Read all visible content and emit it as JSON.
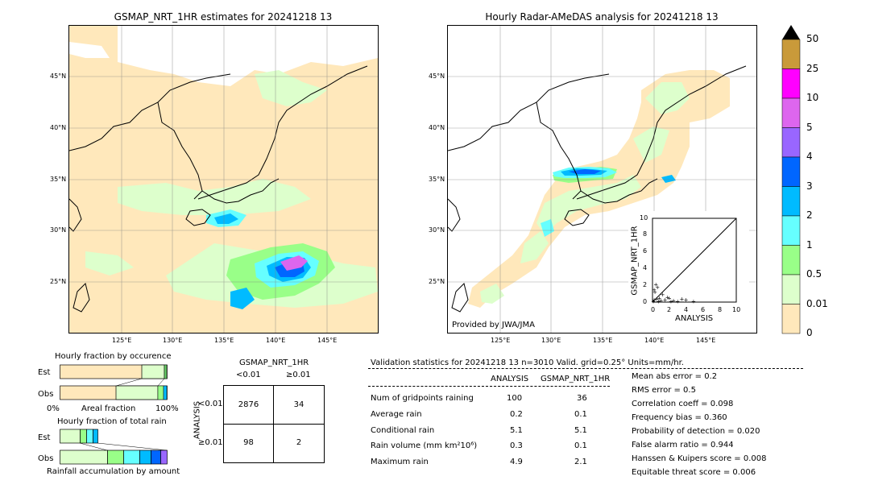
{
  "left_map": {
    "title": "GSMAP_NRT_1HR estimates for 20241218 13",
    "lat_labels": [
      "45°N",
      "40°N",
      "35°N",
      "30°N",
      "25°N"
    ],
    "lon_labels": [
      "125°E",
      "130°E",
      "135°E",
      "140°E",
      "145°E"
    ]
  },
  "right_map": {
    "title": "Hourly Radar-AMeDAS analysis for 20241218 13",
    "lat_labels": [
      "45°N",
      "40°N",
      "35°N",
      "30°N",
      "25°N"
    ],
    "lon_labels": [
      "125°E",
      "130°E",
      "135°E",
      "140°E",
      "145°E"
    ],
    "credit": "Provided by JWA/JMA"
  },
  "colorbar": {
    "labels": [
      "50",
      "25",
      "10",
      "5",
      "4",
      "3",
      "2",
      "1",
      "0.5",
      "0.01",
      "0"
    ],
    "colors": [
      "#c99a3a",
      "#ff00ff",
      "#dd66ee",
      "#9966ff",
      "#0066ff",
      "#00bbff",
      "#66ffff",
      "#99ff88",
      "#ddffcc",
      "#ffe8bb"
    ]
  },
  "scatter": {
    "xlabel": "ANALYSIS",
    "ylabel": "GSMAP_NRT_1HR",
    "x_ticks": [
      "0",
      "2",
      "4",
      "6",
      "8",
      "10"
    ],
    "y_ticks": [
      "0",
      "2",
      "4",
      "6",
      "8",
      "10"
    ]
  },
  "chart_data": [
    {
      "type": "scatter",
      "title": "",
      "xlabel": "ANALYSIS",
      "ylabel": "GSMAP_NRT_1HR",
      "xlim": [
        0,
        10
      ],
      "ylim": [
        0,
        10
      ],
      "points": [
        [
          0.1,
          0.1
        ],
        [
          0.2,
          0.3
        ],
        [
          0.3,
          1.2
        ],
        [
          0.5,
          0.4
        ],
        [
          0.6,
          1.8
        ],
        [
          0.8,
          0.5
        ],
        [
          1.0,
          0.2
        ],
        [
          1.2,
          0.9
        ],
        [
          0.4,
          2.1
        ],
        [
          1.5,
          0.3
        ],
        [
          2.0,
          0.5
        ],
        [
          2.5,
          0.2
        ],
        [
          3.0,
          0.1
        ],
        [
          3.5,
          0.4
        ],
        [
          4.0,
          0.3
        ],
        [
          4.9,
          0.1
        ],
        [
          0.2,
          1.5
        ],
        [
          0.7,
          0.1
        ],
        [
          1.8,
          0.6
        ],
        [
          2.2,
          0.1
        ]
      ]
    },
    {
      "type": "bar",
      "title": "Hourly fraction by occurence",
      "categories": [
        "Est",
        "Obs"
      ],
      "xlabel": "Areal fraction",
      "x_ticks": [
        "0%",
        "100%"
      ]
    },
    {
      "type": "bar",
      "title": "Hourly fraction of total rain",
      "categories": [
        "Est",
        "Obs"
      ],
      "xlabel": "Rainfall accumulation by amount"
    },
    {
      "type": "table",
      "title": "GSMAP_NRT_1HR",
      "col_headers": [
        "<0.01",
        "≥0.01"
      ],
      "row_headers": [
        "<0.01",
        "≥0.01"
      ],
      "row_axis_label": "ANALYSIS",
      "cells": [
        [
          "2876",
          "34"
        ],
        [
          "98",
          "2"
        ]
      ]
    }
  ],
  "stats": {
    "header": "Validation statistics for 20241218 13  n=3010 Valid. grid=0.25° Units=mm/hr.",
    "col_analysis": "ANALYSIS",
    "col_gsmap": "GSMAP_NRT_1HR",
    "rows": [
      {
        "label": "Num of gridpoints raining",
        "analysis": "100",
        "gsmap": "36"
      },
      {
        "label": "Average rain",
        "analysis": "0.2",
        "gsmap": "0.1"
      },
      {
        "label": "Conditional rain",
        "analysis": "5.1",
        "gsmap": "5.1"
      },
      {
        "label": "Rain volume (mm km²10⁶)",
        "analysis": "0.3",
        "gsmap": "0.1"
      },
      {
        "label": "Maximum rain",
        "analysis": "4.9",
        "gsmap": "2.1"
      }
    ],
    "scores": [
      "Mean abs error =    0.2",
      "RMS error =    0.5",
      "Correlation coeff =  0.098",
      "Frequency bias =  0.360",
      "Probability of detection =  0.020",
      "False alarm ratio =  0.944",
      "Hanssen & Kuipers score =  0.008",
      "Equitable threat score =  0.006"
    ]
  }
}
